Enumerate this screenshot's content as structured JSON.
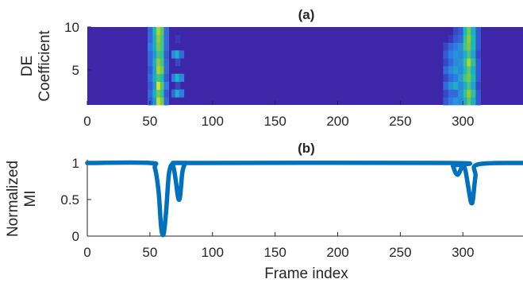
{
  "chart_data": [
    {
      "type": "heatmap",
      "title": "(a)",
      "xlabel": "",
      "ylabel_lines": [
        "DE",
        "Coefficient"
      ],
      "xlim": [
        0,
        348
      ],
      "ylim": [
        1,
        10
      ],
      "xticks": [
        0,
        50,
        100,
        150,
        200,
        250,
        300
      ],
      "yticks": [
        5,
        10
      ],
      "colormap": [
        "#3e26a8",
        "#2f7be9",
        "#18bcb6",
        "#95cb33",
        "#f9fb15"
      ],
      "background_color": "#3e26a8",
      "bursts": [
        {
          "comment_free": true,
          "columns": [
            {
              "x": 52,
              "values": [
                0.15,
                0.2,
                0.15,
                0.2,
                0.15,
                0.2,
                0.2,
                0.25,
                0.2,
                0.2
              ]
            },
            {
              "x": 56,
              "values": [
                0.35,
                0.45,
                0.35,
                0.45,
                0.4,
                0.45,
                0.35,
                0.45,
                0.45,
                0.5
              ]
            },
            {
              "x": 59,
              "values": [
                0.85,
                0.7,
                0.9,
                0.6,
                0.8,
                0.75,
                0.6,
                0.7,
                0.75,
                0.8
              ]
            },
            {
              "x": 62,
              "values": [
                0.7,
                0.55,
                0.65,
                0.5,
                0.7,
                0.6,
                0.55,
                0.6,
                0.6,
                0.65
              ]
            },
            {
              "x": 65,
              "values": [
                0.2,
                0.15,
                0.25,
                0.15,
                0.2,
                0.2,
                0.15,
                0.2,
                0.2,
                0.2
              ]
            },
            {
              "x": 71,
              "values": [
                0.0,
                0.2,
                0.0,
                0.25,
                0.0,
                0.0,
                0.3,
                0.0,
                0.0,
                0.0
              ]
            },
            {
              "x": 74,
              "values": [
                0.0,
                0.45,
                0.1,
                0.5,
                0.0,
                0.1,
                0.45,
                0.0,
                0.05,
                0.0
              ]
            },
            {
              "x": 77,
              "values": [
                0.0,
                0.25,
                0.0,
                0.3,
                0.0,
                0.0,
                0.2,
                0.0,
                0.0,
                0.0
              ]
            }
          ]
        },
        {
          "columns": [
            {
              "x": 288,
              "values": [
                0.15,
                0.1,
                0.2,
                0.1,
                0.2,
                0.1,
                0.15,
                0.1,
                0.0,
                0.0
              ]
            },
            {
              "x": 292,
              "values": [
                0.25,
                0.2,
                0.35,
                0.2,
                0.3,
                0.2,
                0.25,
                0.2,
                0.05,
                0.0
              ]
            },
            {
              "x": 296,
              "values": [
                0.35,
                0.2,
                0.45,
                0.25,
                0.4,
                0.3,
                0.35,
                0.25,
                0.15,
                0.1
              ]
            },
            {
              "x": 300,
              "values": [
                0.3,
                0.35,
                0.3,
                0.4,
                0.3,
                0.35,
                0.3,
                0.35,
                0.2,
                0.15
              ]
            },
            {
              "x": 304,
              "values": [
                0.45,
                0.55,
                0.45,
                0.6,
                0.5,
                0.55,
                0.45,
                0.6,
                0.55,
                0.5
              ]
            },
            {
              "x": 307,
              "values": [
                0.65,
                0.75,
                0.6,
                0.7,
                0.65,
                0.8,
                0.6,
                0.7,
                0.75,
                0.7
              ]
            },
            {
              "x": 310,
              "values": [
                0.45,
                0.55,
                0.4,
                0.5,
                0.45,
                0.55,
                0.4,
                0.5,
                0.5,
                0.45
              ]
            },
            {
              "x": 314,
              "values": [
                0.15,
                0.15,
                0.1,
                0.15,
                0.15,
                0.15,
                0.1,
                0.15,
                0.15,
                0.15
              ]
            }
          ]
        }
      ]
    },
    {
      "type": "line",
      "title": "(b)",
      "xlabel": "Frame index",
      "ylabel_lines": [
        "Normalized",
        "MI"
      ],
      "xlim": [
        0,
        348
      ],
      "ylim": [
        0,
        1
      ],
      "xticks": [
        0,
        50,
        100,
        150,
        200,
        250,
        300
      ],
      "yticks": [
        0,
        0.5,
        1
      ],
      "ytick_labels": [
        "0",
        "0.5",
        "1"
      ],
      "line_color": "#0072bd",
      "series": [
        {
          "x": [
            0,
            50,
            54,
            57,
            59,
            61,
            63,
            65,
            67,
            69,
            71,
            72,
            73,
            74,
            75,
            76,
            78,
            80,
            85,
            290,
            292,
            294,
            296,
            298,
            300,
            302,
            304,
            306,
            307,
            308,
            310,
            312,
            348
          ],
          "y": [
            1,
            1,
            0.93,
            0.6,
            0.12,
            0.03,
            0.35,
            0.82,
            0.97,
            0.93,
            0.72,
            0.58,
            0.5,
            0.53,
            0.7,
            0.88,
            0.99,
            1,
            1,
            1,
            0.96,
            0.87,
            0.84,
            0.9,
            0.97,
            0.9,
            0.7,
            0.5,
            0.45,
            0.5,
            0.82,
            0.98,
            1
          ]
        }
      ]
    }
  ]
}
